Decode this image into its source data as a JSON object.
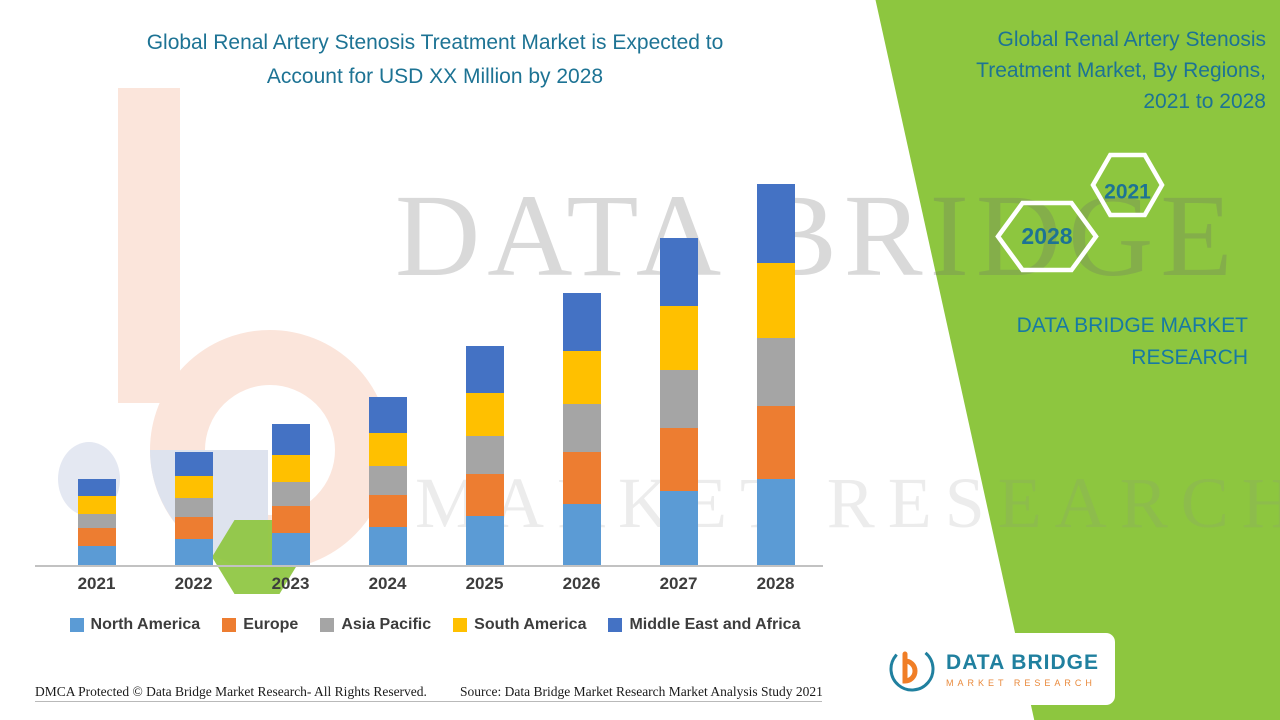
{
  "colors": {
    "panel_green": "#8DC63F",
    "title_teal": "#1D7394",
    "brand_teal": "#1779A3",
    "logo_teal": "#20809F",
    "logo_orange": "#E98A3C",
    "text_dark": "#3D3D3D"
  },
  "header": {
    "left_title_line1": "Global Renal Artery Stenosis Treatment Market is Expected to",
    "left_title_line2": "Account for USD XX Million by 2028"
  },
  "side_panel": {
    "title_lines": [
      "Global Renal Artery Stenosis",
      "Treatment Market, By Regions,",
      "2021 to 2028"
    ],
    "hexagons": [
      "2021",
      "2028"
    ],
    "brand_line1": "DATA BRIDGE MARKET",
    "brand_line2": "RESEARCH"
  },
  "watermark": {
    "line1": "DATA BRIDGE",
    "line2": "MARKET RESEARCH"
  },
  "chart_data": {
    "type": "bar",
    "stacked": true,
    "title": "Global Renal Artery Stenosis Treatment Market is Expected to Account for USD XX Million by 2028",
    "xlabel": "",
    "ylabel": "",
    "grid": false,
    "legend_position": "bottom",
    "categories": [
      "2021",
      "2022",
      "2023",
      "2024",
      "2025",
      "2026",
      "2027",
      "2028"
    ],
    "series": [
      {
        "name": "North America",
        "color": "#5B9BD5",
        "values": [
          2.0,
          2.7,
          3.3,
          3.9,
          5.0,
          6.2,
          7.5,
          8.7
        ]
      },
      {
        "name": "Europe",
        "color": "#ED7D31",
        "values": [
          1.8,
          2.2,
          2.7,
          3.2,
          4.2,
          5.2,
          6.3,
          7.3
        ]
      },
      {
        "name": "Asia Pacific",
        "color": "#A5A5A5",
        "values": [
          1.4,
          1.9,
          2.4,
          2.9,
          3.8,
          4.8,
          5.8,
          6.8
        ]
      },
      {
        "name": "South America",
        "color": "#FFC000",
        "values": [
          1.8,
          2.2,
          2.7,
          3.3,
          4.3,
          5.3,
          6.4,
          7.5
        ]
      },
      {
        "name": "Middle East and Africa",
        "color": "#4472C4",
        "values": [
          1.7,
          2.4,
          3.1,
          3.6,
          4.7,
          5.8,
          6.8,
          7.9
        ]
      }
    ],
    "ylim": [
      0,
      40
    ],
    "values_note": "No numeric axis shown in source; segment values estimated in relative units from bar heights"
  },
  "footer": {
    "dmca": "DMCA Protected © Data Bridge Market Research- All Rights Reserved.",
    "source": "Source: Data Bridge Market Research Market Analysis Study 2021"
  },
  "logo_card": {
    "brand": "DATA BRIDGE",
    "tagline": "MARKET RESEARCH"
  }
}
